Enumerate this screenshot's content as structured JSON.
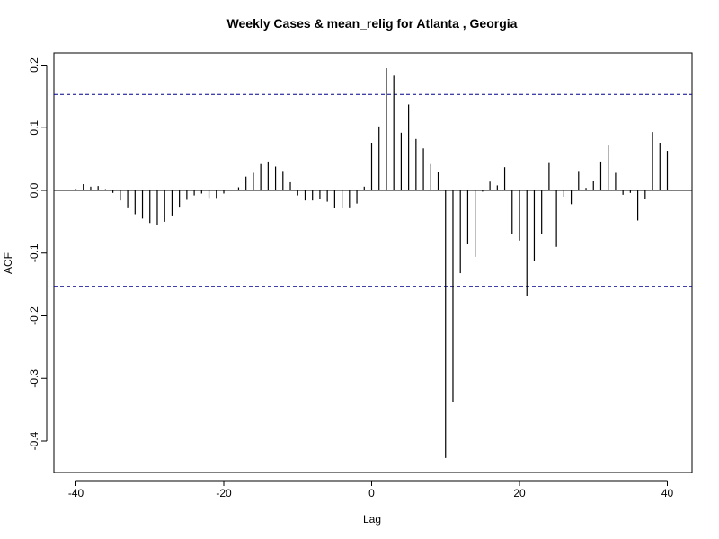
{
  "chart_data": {
    "type": "bar",
    "title": "Weekly Cases & mean_relig for Atlanta , Georgia",
    "xlabel": "Lag",
    "ylabel": "ACF",
    "xlim": [
      -42,
      43
    ],
    "ylim": [
      -0.45,
      0.22
    ],
    "x_ticks": [
      -40,
      -20,
      0,
      20,
      40
    ],
    "x_tick_labels": [
      "-40",
      "-20",
      "0",
      "20",
      "40"
    ],
    "y_ticks": [
      -0.4,
      -0.3,
      -0.2,
      -0.1,
      0.0,
      0.1,
      0.2
    ],
    "y_tick_labels": [
      "-0.4",
      "-0.3",
      "-0.2",
      "-0.1",
      "0.0",
      "0.1",
      "0.2"
    ],
    "confidence_bound": 0.153,
    "bound_color": "#00008b",
    "bar_color": "#000000",
    "grid": false,
    "lags": [
      -40,
      -39,
      -38,
      -37,
      -36,
      -35,
      -34,
      -33,
      -32,
      -31,
      -30,
      -29,
      -28,
      -27,
      -26,
      -25,
      -24,
      -23,
      -22,
      -21,
      -20,
      -19,
      -18,
      -17,
      -16,
      -15,
      -14,
      -13,
      -12,
      -11,
      -10,
      -9,
      -8,
      -7,
      -6,
      -5,
      -4,
      -3,
      -2,
      -1,
      0,
      1,
      2,
      3,
      4,
      5,
      6,
      7,
      8,
      9,
      10,
      11,
      12,
      13,
      14,
      15,
      16,
      17,
      18,
      19,
      20,
      21,
      22,
      23,
      24,
      25,
      26,
      27,
      28,
      29,
      30,
      31,
      32,
      33,
      34,
      35,
      36,
      37,
      38,
      39,
      40
    ],
    "values": [
      0.002,
      0.01,
      0.006,
      0.007,
      0.002,
      -0.004,
      -0.016,
      -0.027,
      -0.038,
      -0.045,
      -0.052,
      -0.055,
      -0.05,
      -0.04,
      -0.026,
      -0.015,
      -0.008,
      -0.005,
      -0.012,
      -0.012,
      -0.005,
      0.0,
      0.005,
      0.022,
      0.028,
      0.042,
      0.046,
      0.038,
      0.031,
      0.013,
      -0.008,
      -0.016,
      -0.016,
      -0.013,
      -0.018,
      -0.028,
      -0.028,
      -0.027,
      -0.021,
      0.006,
      0.076,
      0.102,
      0.195,
      0.183,
      0.092,
      0.137,
      0.082,
      0.067,
      0.042,
      0.03,
      -0.427,
      -0.337,
      -0.132,
      -0.086,
      -0.106,
      -0.002,
      0.014,
      0.008,
      0.037,
      -0.069,
      -0.08,
      -0.168,
      -0.112,
      -0.07,
      0.045,
      -0.09,
      -0.01,
      -0.022,
      0.031,
      0.004,
      0.015,
      0.046,
      0.073,
      0.028,
      -0.007,
      -0.004,
      -0.048,
      -0.013,
      0.093,
      0.076,
      0.063
    ]
  }
}
